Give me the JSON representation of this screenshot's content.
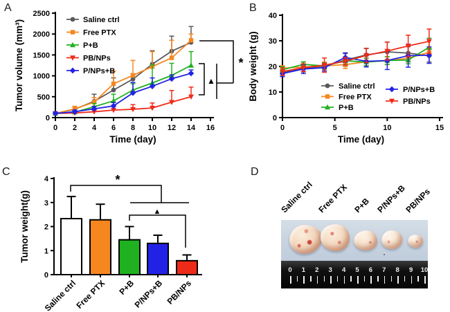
{
  "figure": {
    "panel_labels": {
      "a": "A",
      "b": "B",
      "c": "C",
      "d": "D"
    }
  },
  "colors": {
    "saline": "#58595B",
    "free_ptx": "#F6871F",
    "p_b": "#1FB11F",
    "pb_nps": "#EE2B19",
    "p_nps_b": "#2222E6",
    "bar_white": "#FFFFFF",
    "axis": "#000000"
  },
  "annotations": {
    "panel_a": {
      "group_symbol": "▲",
      "top_symbol": "*"
    },
    "panel_c": {
      "group_symbol": "▲",
      "top_symbol": "*"
    }
  },
  "chart_data": [
    {
      "id": "tumor-volume",
      "panel": "A",
      "type": "line",
      "xlabel": "Time (day)",
      "ylabel": "Tumor volume (mm³)",
      "xlim": [
        0,
        16
      ],
      "ylim": [
        0,
        2500
      ],
      "xticks": [
        0,
        2,
        4,
        6,
        8,
        10,
        12,
        14,
        16
      ],
      "yticks": [
        0,
        500,
        1000,
        1500,
        2000,
        2500
      ],
      "grid": false,
      "legend_position": "upper-left-inside",
      "x": [
        0,
        2,
        4,
        6,
        8,
        10,
        12,
        14
      ],
      "series": [
        {
          "name": "Saline ctrl",
          "color_key": "saline",
          "marker": "circle",
          "values": [
            100,
            200,
            390,
            660,
            920,
            1280,
            1590,
            1800
          ],
          "errors": [
            40,
            70,
            170,
            290,
            130,
            320,
            360,
            380
          ]
        },
        {
          "name": "Free PTX",
          "color_key": "free_ptx",
          "marker": "square",
          "values": [
            100,
            210,
            370,
            810,
            1010,
            1220,
            1430,
            1850
          ],
          "errors": [
            40,
            60,
            110,
            300,
            360,
            360,
            420,
            150
          ]
        },
        {
          "name": "P+B",
          "color_key": "p_b",
          "marker": "triangle-up",
          "values": [
            100,
            130,
            260,
            400,
            660,
            830,
            1010,
            1250
          ],
          "errors": [
            30,
            40,
            80,
            160,
            150,
            430,
            290,
            330
          ]
        },
        {
          "name": "PB/NPs",
          "color_key": "pb_nps",
          "marker": "triangle-down",
          "values": [
            100,
            110,
            140,
            180,
            200,
            230,
            370,
            500
          ],
          "errors": [
            20,
            30,
            50,
            120,
            110,
            120,
            280,
            230
          ]
        },
        {
          "name": "P/NPs+B",
          "color_key": "p_nps_b",
          "marker": "diamond",
          "values": [
            100,
            140,
            210,
            280,
            590,
            750,
            930,
            1060
          ],
          "errors": [
            30,
            40,
            60,
            80,
            250,
            200,
            90,
            80
          ]
        }
      ]
    },
    {
      "id": "body-weight",
      "panel": "B",
      "type": "line",
      "xlabel": "Time (day)",
      "ylabel": "Body weight (g)",
      "xlim": [
        0,
        15
      ],
      "ylim": [
        0,
        40
      ],
      "xticks": [
        0,
        5,
        10,
        15
      ],
      "yticks": [
        0,
        10,
        20,
        30,
        40
      ],
      "grid": false,
      "legend_position": "lower-center-inside-two-columns",
      "x": [
        0,
        2,
        4,
        6,
        8,
        10,
        12,
        14
      ],
      "series": [
        {
          "name": "Saline ctrl",
          "color_key": "saline",
          "marker": "circle",
          "values": [
            17.5,
            19.3,
            20.0,
            22.5,
            24.5,
            25.7,
            25.2,
            24.2
          ],
          "errors": [
            1.0,
            1.5,
            1.2,
            2.5,
            2.5,
            3.8,
            2.5,
            2.5
          ]
        },
        {
          "name": "Free PTX",
          "color_key": "free_ptx",
          "marker": "square",
          "values": [
            19.3,
            19.8,
            20.2,
            20.7,
            21.8,
            22.2,
            23.2,
            25.5
          ],
          "errors": [
            1.0,
            1.8,
            1.5,
            1.5,
            1.5,
            1.5,
            1.5,
            1.5
          ]
        },
        {
          "name": "P+B",
          "color_key": "p_b",
          "marker": "triangle-up",
          "values": [
            18.7,
            20.8,
            20.2,
            22.2,
            21.7,
            22.3,
            22.5,
            27.5
          ],
          "errors": [
            1.2,
            1.0,
            1.2,
            1.5,
            1.5,
            1.5,
            1.5,
            3.5
          ]
        },
        {
          "name": "P/NPs+B",
          "color_key": "p_nps_b",
          "marker": "diamond",
          "values": [
            17.2,
            19.0,
            19.5,
            23.5,
            22.0,
            22.3,
            24.2,
            24.4
          ],
          "errors": [
            1.2,
            1.8,
            1.3,
            1.8,
            2.2,
            3.5,
            4.5,
            3.2
          ]
        },
        {
          "name": "PB/NPs",
          "color_key": "pb_nps",
          "marker": "triangle-down",
          "values": [
            18.0,
            19.5,
            20.5,
            22.0,
            24.3,
            26.0,
            28.0,
            29.8
          ],
          "errors": [
            1.5,
            1.5,
            2.8,
            1.5,
            2.8,
            3.5,
            4.2,
            4.8
          ]
        }
      ]
    },
    {
      "id": "tumor-weight",
      "panel": "C",
      "type": "bar",
      "xlabel": "",
      "ylabel": "Tumor weight(g)",
      "ylim": [
        0,
        4
      ],
      "yticks": [
        0,
        1,
        2,
        3,
        4
      ],
      "grid": false,
      "categories": [
        "Saline ctrl",
        "Free PTX",
        "P+B",
        "P/NPs+B",
        "PB/NPs"
      ],
      "values": [
        2.33,
        2.28,
        1.45,
        1.3,
        0.58
      ],
      "errors": [
        0.92,
        0.65,
        0.55,
        0.34,
        0.24
      ],
      "bar_color_keys": [
        "bar_white",
        "free_ptx",
        "p_b",
        "p_nps_b",
        "pb_nps"
      ]
    }
  ],
  "panel_d": {
    "labels": [
      "Saline ctrl",
      "Free PTX",
      "P+B",
      "P/NPs+B",
      "PB/NPs"
    ],
    "ruler_numbers": [
      "0",
      "1",
      "2",
      "3",
      "4",
      "5",
      "6",
      "7",
      "8",
      "9",
      "10"
    ]
  }
}
